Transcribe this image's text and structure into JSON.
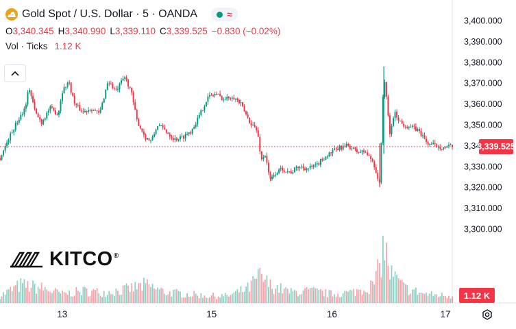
{
  "legend": {
    "title": "Gold Spot / U.S. Dollar · 5 · OANDA",
    "symbol_icon": "gold-bars-icon",
    "status_icons": [
      "market-open-dot-icon",
      "delayed-data-icon"
    ],
    "ohlc": {
      "o_label": "O",
      "o_value": "3,340.345",
      "h_label": "H",
      "h_value": "3,340.990",
      "l_label": "L",
      "l_value": "3,339.110",
      "c_label": "C",
      "c_value": "3,339.525",
      "change": "−0.830 (−0.02%)"
    },
    "volume": {
      "label": "Vol · Ticks",
      "value": "1.12 K"
    }
  },
  "watermark": {
    "text": "KITCO",
    "mark": "®"
  },
  "price_tag": "3,339.525",
  "volume_tag": "1.12 K",
  "colors": {
    "up": "#089981",
    "down": "#f23645",
    "grid": "#f0f3fa",
    "text": "#131722"
  },
  "chart_data": {
    "type": "candlestick",
    "symbol": "Gold Spot / U.S. Dollar",
    "interval": "5",
    "source": "OANDA",
    "y_ticks": [
      3300,
      3310,
      3320,
      3330,
      3340,
      3350,
      3360,
      3370,
      3380,
      3390,
      3400
    ],
    "y_tick_labels": [
      "3,300.000",
      "3,310.000",
      "3,320.000",
      "3,330.000",
      "3,340.000",
      "3,350.000",
      "3,360.000",
      "3,370.000",
      "3,380.000",
      "3,390.000",
      "3,400.000"
    ],
    "ylim": [
      3296,
      3404
    ],
    "x_tick_labels": [
      "13",
      "15",
      "16",
      "17"
    ],
    "x_range": [
      0,
      218
    ],
    "x_ticks": [
      30,
      102,
      160,
      217
    ],
    "last_price": 3339.525,
    "price_path": [
      [
        0,
        3334
      ],
      [
        4,
        3343
      ],
      [
        8,
        3351
      ],
      [
        12,
        3358
      ],
      [
        14,
        3368
      ],
      [
        17,
        3356
      ],
      [
        20,
        3351
      ],
      [
        24,
        3358
      ],
      [
        28,
        3355
      ],
      [
        30,
        3366
      ],
      [
        33,
        3371
      ],
      [
        36,
        3360
      ],
      [
        40,
        3356
      ],
      [
        44,
        3358
      ],
      [
        48,
        3355
      ],
      [
        52,
        3371
      ],
      [
        56,
        3366
      ],
      [
        60,
        3373
      ],
      [
        63,
        3367
      ],
      [
        66,
        3352
      ],
      [
        70,
        3344
      ],
      [
        73,
        3342
      ],
      [
        76,
        3350
      ],
      [
        80,
        3347
      ],
      [
        84,
        3343
      ],
      [
        88,
        3344
      ],
      [
        92,
        3347
      ],
      [
        96,
        3354
      ],
      [
        100,
        3363
      ],
      [
        104,
        3365
      ],
      [
        108,
        3362
      ],
      [
        112,
        3364
      ],
      [
        116,
        3360
      ],
      [
        120,
        3352
      ],
      [
        124,
        3347
      ],
      [
        126,
        3333
      ],
      [
        128,
        3336
      ],
      [
        130,
        3323
      ],
      [
        133,
        3327
      ],
      [
        136,
        3329
      ],
      [
        140,
        3327
      ],
      [
        144,
        3330
      ],
      [
        148,
        3329
      ],
      [
        152,
        3330
      ],
      [
        156,
        3334
      ],
      [
        160,
        3337
      ],
      [
        164,
        3339
      ],
      [
        168,
        3340
      ],
      [
        172,
        3337
      ],
      [
        176,
        3337
      ],
      [
        180,
        3332
      ],
      [
        183,
        3321
      ],
      [
        185,
        3375
      ],
      [
        188,
        3345
      ],
      [
        190,
        3356
      ],
      [
        194,
        3350
      ],
      [
        198,
        3349
      ],
      [
        202,
        3347
      ],
      [
        206,
        3341
      ],
      [
        210,
        3340
      ],
      [
        214,
        3339
      ],
      [
        217,
        3339.525
      ]
    ],
    "volume_path": [
      [
        0,
        0.12
      ],
      [
        10,
        0.3
      ],
      [
        20,
        0.25
      ],
      [
        30,
        0.15
      ],
      [
        40,
        0.2
      ],
      [
        50,
        0.18
      ],
      [
        60,
        0.22
      ],
      [
        70,
        0.3
      ],
      [
        80,
        0.18
      ],
      [
        90,
        0.15
      ],
      [
        100,
        0.12
      ],
      [
        110,
        0.12
      ],
      [
        120,
        0.25
      ],
      [
        125,
        0.45
      ],
      [
        130,
        0.3
      ],
      [
        140,
        0.18
      ],
      [
        150,
        0.2
      ],
      [
        160,
        0.15
      ],
      [
        170,
        0.18
      ],
      [
        180,
        0.3
      ],
      [
        183,
        0.6
      ],
      [
        185,
        1.0
      ],
      [
        188,
        0.5
      ],
      [
        195,
        0.25
      ],
      [
        205,
        0.15
      ],
      [
        217,
        0.12
      ]
    ]
  }
}
